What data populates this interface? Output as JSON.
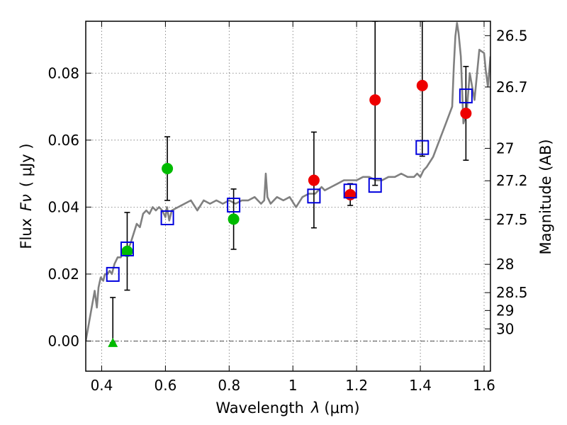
{
  "chart_data": {
    "type": "scatter",
    "xlabel_prefix": "Wavelength",
    "xlabel_symbol": "λ",
    "xlabel_unit": "(μm)",
    "ylabel_prefix": "Flux",
    "ylabel_symbol": "Fν",
    "ylabel_unit": "( μJy )",
    "y2label": "Magnitude (AB)",
    "xlim": [
      0.35,
      1.62
    ],
    "ylim": [
      -0.009,
      0.0955
    ],
    "xticks": [
      0.4,
      0.6,
      0.8,
      1.0,
      1.2,
      1.4,
      1.6
    ],
    "xtick_labels": [
      "0.4",
      "0.6",
      "0.8",
      "1",
      "1.2",
      "1.4",
      "1.6"
    ],
    "yticks": [
      0.0,
      0.02,
      0.04,
      0.06,
      0.08
    ],
    "ytick_labels": [
      "0.00",
      "0.02",
      "0.04",
      "0.06",
      "0.08"
    ],
    "mag_ticks": [
      26.5,
      26.7,
      27,
      27.2,
      27.5,
      28,
      28.5,
      29,
      30
    ],
    "mag_tick_labels": [
      "26.5",
      "26.7",
      "27",
      "27.2",
      "27.5",
      "28",
      "28.5",
      "29",
      "30"
    ],
    "grid": true,
    "colors": {
      "green": "#00bb00",
      "red": "#ee0000",
      "blue": "#0000dd",
      "model": "#808080"
    },
    "series": [
      {
        "name": "observed-green",
        "marker": "circle",
        "points": [
          {
            "x": 0.48,
            "y": 0.0268,
            "lo": 0.0152,
            "hi": 0.0384
          },
          {
            "x": 0.606,
            "y": 0.0515,
            "lo": 0.042,
            "hi": 0.061
          },
          {
            "x": 0.814,
            "y": 0.0364,
            "lo": 0.0274,
            "hi": 0.0454
          }
        ]
      },
      {
        "name": "upper-limit",
        "marker": "triangle",
        "points": [
          {
            "x": 0.435,
            "y": -0.0005,
            "lo": -0.0005,
            "hi": 0.013
          }
        ]
      },
      {
        "name": "observed-red",
        "marker": "circle",
        "points": [
          {
            "x": 1.066,
            "y": 0.048,
            "lo": 0.0338,
            "hi": 0.0624
          },
          {
            "x": 1.18,
            "y": 0.0437,
            "lo": 0.0405,
            "hi": 0.047
          },
          {
            "x": 1.258,
            "y": 0.072,
            "lo": 0.0465,
            "hi": 0.0955
          },
          {
            "x": 1.406,
            "y": 0.0763,
            "lo": 0.0552,
            "hi": 0.0955
          },
          {
            "x": 1.543,
            "y": 0.068,
            "lo": 0.054,
            "hi": 0.082
          }
        ]
      },
      {
        "name": "model-photometry",
        "marker": "square",
        "points": [
          {
            "x": 0.435,
            "y": 0.0199
          },
          {
            "x": 0.48,
            "y": 0.0275
          },
          {
            "x": 0.606,
            "y": 0.0368
          },
          {
            "x": 0.814,
            "y": 0.0406
          },
          {
            "x": 1.066,
            "y": 0.0433
          },
          {
            "x": 1.18,
            "y": 0.0448
          },
          {
            "x": 1.258,
            "y": 0.0465
          },
          {
            "x": 1.406,
            "y": 0.0578
          },
          {
            "x": 1.543,
            "y": 0.0732
          }
        ]
      },
      {
        "name": "model-spectrum",
        "marker": "line",
        "x": [
          0.35,
          0.365,
          0.378,
          0.385,
          0.39,
          0.397,
          0.405,
          0.41,
          0.418,
          0.425,
          0.432,
          0.44,
          0.45,
          0.46,
          0.47,
          0.48,
          0.49,
          0.5,
          0.51,
          0.52,
          0.53,
          0.54,
          0.55,
          0.56,
          0.57,
          0.58,
          0.59,
          0.6,
          0.605,
          0.612,
          0.62,
          0.64,
          0.66,
          0.68,
          0.7,
          0.72,
          0.74,
          0.76,
          0.78,
          0.8,
          0.82,
          0.84,
          0.86,
          0.88,
          0.9,
          0.91,
          0.915,
          0.92,
          0.93,
          0.95,
          0.97,
          0.99,
          1.01,
          1.03,
          1.05,
          1.07,
          1.09,
          1.1,
          1.12,
          1.14,
          1.16,
          1.18,
          1.2,
          1.22,
          1.24,
          1.26,
          1.28,
          1.3,
          1.32,
          1.34,
          1.36,
          1.38,
          1.39,
          1.4,
          1.41,
          1.42,
          1.44,
          1.46,
          1.48,
          1.5,
          1.505,
          1.51,
          1.515,
          1.52,
          1.527,
          1.535,
          1.545,
          1.555,
          1.57,
          1.585,
          1.6,
          1.605,
          1.612,
          1.62
        ],
        "y": [
          0.0,
          0.008,
          0.015,
          0.01,
          0.016,
          0.019,
          0.018,
          0.02,
          0.02,
          0.021,
          0.02,
          0.023,
          0.025,
          0.025,
          0.027,
          0.027,
          0.029,
          0.032,
          0.035,
          0.034,
          0.038,
          0.039,
          0.038,
          0.04,
          0.039,
          0.04,
          0.039,
          0.037,
          0.04,
          0.036,
          0.039,
          0.04,
          0.041,
          0.042,
          0.039,
          0.042,
          0.041,
          0.042,
          0.041,
          0.042,
          0.041,
          0.042,
          0.042,
          0.043,
          0.041,
          0.042,
          0.05,
          0.043,
          0.041,
          0.043,
          0.042,
          0.043,
          0.04,
          0.043,
          0.044,
          0.044,
          0.046,
          0.045,
          0.046,
          0.047,
          0.048,
          0.048,
          0.048,
          0.049,
          0.049,
          0.048,
          0.048,
          0.049,
          0.049,
          0.05,
          0.049,
          0.049,
          0.05,
          0.049,
          0.051,
          0.052,
          0.055,
          0.06,
          0.065,
          0.07,
          0.082,
          0.091,
          0.095,
          0.092,
          0.085,
          0.065,
          0.068,
          0.08,
          0.072,
          0.087,
          0.086,
          0.081,
          0.076,
          0.085
        ]
      }
    ]
  }
}
